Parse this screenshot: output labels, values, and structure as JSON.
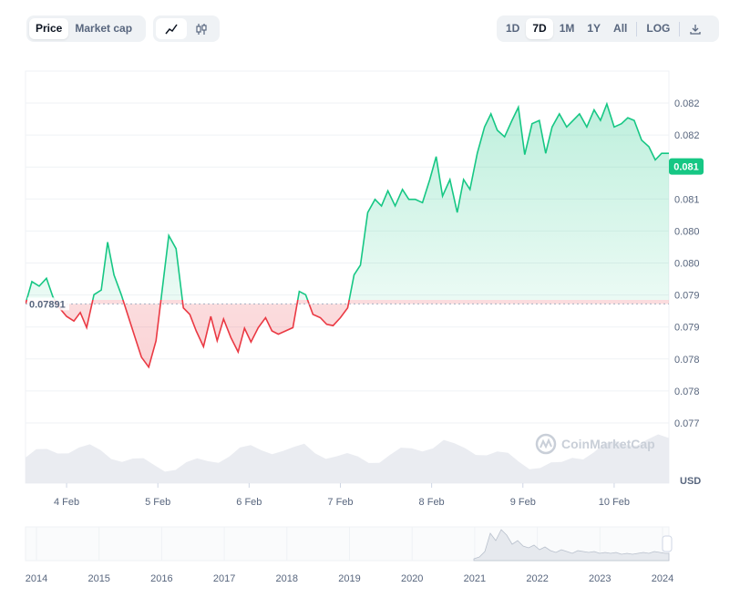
{
  "toolbar": {
    "left_tabs": [
      {
        "label": "Price",
        "active": true
      },
      {
        "label": "Market cap",
        "active": false
      }
    ],
    "chart_type_icons": [
      "line-chart-icon",
      "candlestick-icon"
    ],
    "ranges": [
      {
        "label": "1D",
        "active": false
      },
      {
        "label": "7D",
        "active": true
      },
      {
        "label": "1M",
        "active": false
      },
      {
        "label": "1Y",
        "active": false
      },
      {
        "label": "All",
        "active": false
      }
    ],
    "log_label": "LOG",
    "download_icon": "download-icon"
  },
  "watermark": "CoinMarketCap",
  "currency_label": "USD",
  "current_price_badge": "0.081",
  "reference_price_label": "0.07891",
  "colors": {
    "up": "#16c784",
    "down": "#ea3943",
    "badge": "#16c784",
    "grid": "#eff2f5"
  },
  "navigator": {
    "year_labels": [
      "2014",
      "2015",
      "2016",
      "2017",
      "2018",
      "2019",
      "2020",
      "2021",
      "2022",
      "2023",
      "2024"
    ]
  },
  "chart_data": {
    "type": "line",
    "x_unit": "date (Feb)",
    "x_tick_labels": [
      "4 Feb",
      "5 Feb",
      "6 Feb",
      "7 Feb",
      "8 Feb",
      "9 Feb",
      "10 Feb"
    ],
    "y_tick_labels": [
      "0.082",
      "0.082",
      "0.081",
      "0.081",
      "0.080",
      "0.080",
      "0.079",
      "0.079",
      "0.078",
      "0.078",
      "0.077"
    ],
    "ylim": [
      0.0771,
      0.0822
    ],
    "reference_value": 0.07891,
    "current_value": 0.081,
    "series": [
      {
        "x": [
          3.55,
          3.62,
          3.7,
          3.78,
          3.85,
          3.92,
          4.0,
          4.08,
          4.15,
          4.22,
          4.3,
          4.38,
          4.45,
          4.52,
          4.6,
          4.68,
          4.75,
          4.82,
          4.9,
          4.98,
          5.05,
          5.12,
          5.2,
          5.28,
          5.35,
          5.42,
          5.5,
          5.58,
          5.65,
          5.72,
          5.8,
          5.88,
          5.95,
          6.02,
          6.1,
          6.18,
          6.25,
          6.32,
          6.4,
          6.48,
          6.55,
          6.62,
          6.7,
          6.78,
          6.85,
          6.92,
          7.0,
          7.08,
          7.15,
          7.22,
          7.3,
          7.38,
          7.45,
          7.52,
          7.6,
          7.68,
          7.75,
          7.82,
          7.9,
          7.98,
          8.05,
          8.12,
          8.2,
          8.28,
          8.35,
          8.42,
          8.5,
          8.58,
          8.65,
          8.72,
          8.8,
          8.88,
          8.95,
          9.02,
          9.1,
          9.18,
          9.25,
          9.32,
          9.4,
          9.48,
          9.55,
          9.62,
          9.7,
          9.78,
          9.85,
          9.92,
          10.0,
          10.08,
          10.15,
          10.22,
          10.3,
          10.38,
          10.45,
          10.52,
          10.6
        ],
        "values": [
          0.07891,
          0.07925,
          0.07918,
          0.0793,
          0.07902,
          0.07885,
          0.07872,
          0.07865,
          0.07878,
          0.07855,
          0.07905,
          0.07912,
          0.07985,
          0.07935,
          0.07905,
          0.0787,
          0.0784,
          0.0781,
          0.07795,
          0.07835,
          0.07915,
          0.07995,
          0.07975,
          0.07885,
          0.07875,
          0.0785,
          0.07826,
          0.07872,
          0.07835,
          0.07868,
          0.0784,
          0.07818,
          0.07854,
          0.07833,
          0.07855,
          0.0787,
          0.0785,
          0.07845,
          0.0785,
          0.07855,
          0.0791,
          0.07905,
          0.07875,
          0.0787,
          0.0786,
          0.07858,
          0.0787,
          0.07885,
          0.07935,
          0.0795,
          0.0803,
          0.0805,
          0.0804,
          0.08063,
          0.0804,
          0.08065,
          0.0805,
          0.0805,
          0.08045,
          0.0808,
          0.08115,
          0.08055,
          0.0808,
          0.0803,
          0.0808,
          0.08065,
          0.0812,
          0.0816,
          0.0818,
          0.08155,
          0.08145,
          0.0817,
          0.0819,
          0.08118,
          0.08165,
          0.0817,
          0.0812,
          0.0816,
          0.0818,
          0.0816,
          0.0817,
          0.0818,
          0.0816,
          0.08186,
          0.0817,
          0.08195,
          0.0816,
          0.08165,
          0.08174,
          0.0817,
          0.0814,
          0.0813,
          0.0811,
          0.0812,
          0.0812
        ]
      }
    ],
    "volume_note": "grey volume area below price"
  }
}
